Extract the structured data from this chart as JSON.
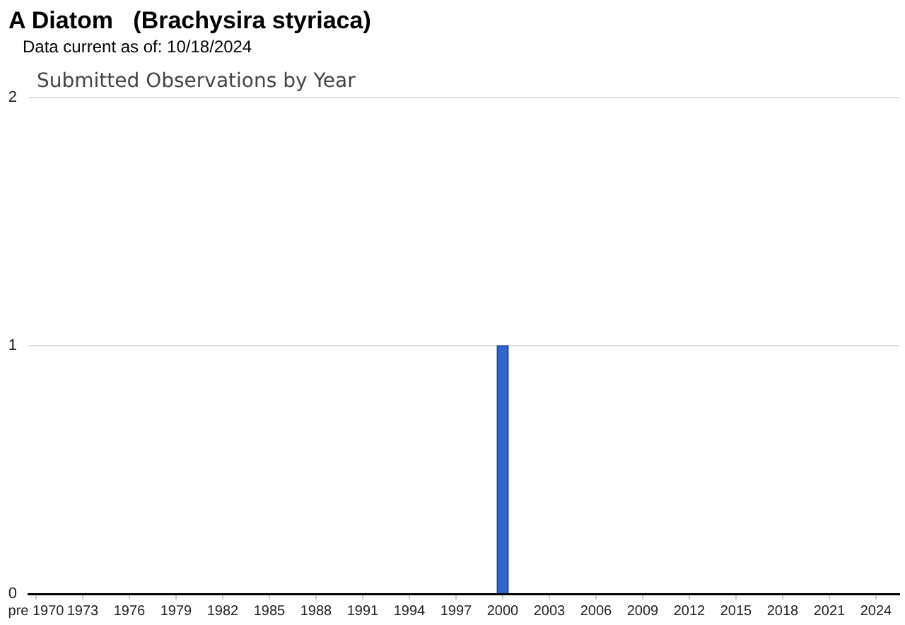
{
  "chart_data": {
    "type": "bar",
    "title": "A Diatom   (Brachysira styriaca)",
    "subtitle": "Data current as of: 10/18/2024",
    "annotations": [
      "Submitted Observations by Year"
    ],
    "categories": [
      "pre 1970",
      null,
      null,
      "1973",
      null,
      null,
      "1976",
      null,
      null,
      "1979",
      null,
      null,
      "1982",
      null,
      null,
      "1985",
      null,
      null,
      "1988",
      null,
      null,
      "1991",
      null,
      null,
      "1994",
      null,
      null,
      "1997",
      null,
      null,
      "2000",
      null,
      null,
      "2003",
      null,
      null,
      "2006",
      null,
      null,
      "2009",
      null,
      null,
      "2012",
      null,
      null,
      "2015",
      null,
      null,
      "2018",
      null,
      null,
      "2021",
      null,
      null,
      "2024",
      null
    ],
    "values": [
      0,
      0,
      0,
      0,
      0,
      0,
      0,
      0,
      0,
      0,
      0,
      0,
      0,
      0,
      0,
      0,
      0,
      0,
      0,
      0,
      0,
      0,
      0,
      0,
      0,
      0,
      0,
      0,
      0,
      0,
      1,
      0,
      0,
      0,
      0,
      0,
      0,
      0,
      0,
      0,
      0,
      0,
      0,
      0,
      0,
      0,
      0,
      0,
      0,
      0,
      0,
      0,
      0,
      0,
      0,
      0
    ],
    "color": "#3366cc",
    "ylim": [
      0,
      2
    ],
    "yticks": [
      0,
      1,
      2
    ],
    "grid": "y",
    "legend": false
  }
}
